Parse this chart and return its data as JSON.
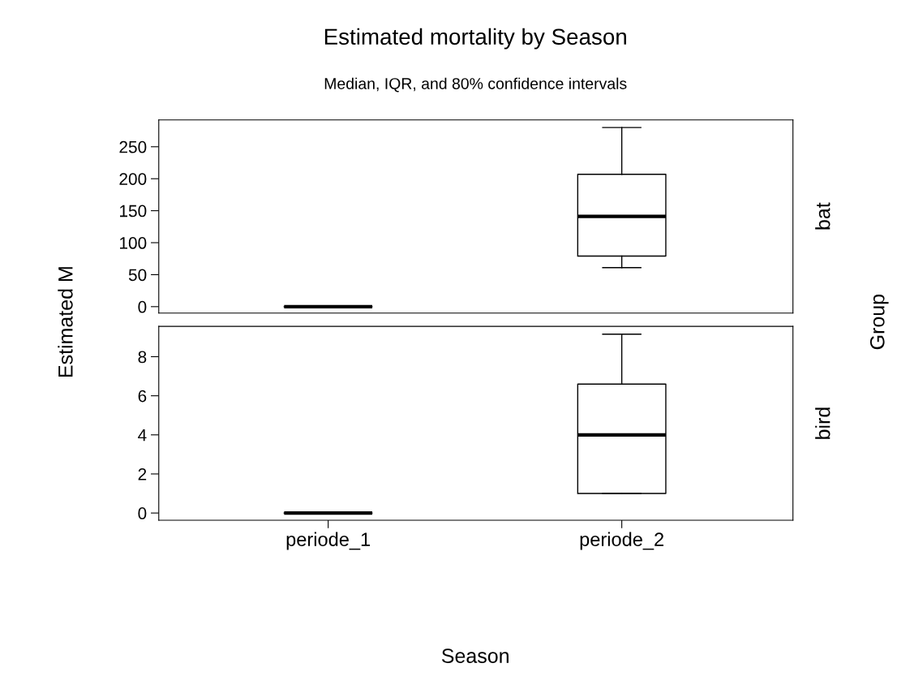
{
  "chart_data": [
    {
      "type": "box",
      "title": "Estimated mortality by Season",
      "subtitle": "Median, IQR, and 80% confidence intervals",
      "ylabel": "Estimated M",
      "boxes": [
        {
          "low": 0,
          "q1": 0,
          "median": 0,
          "q3": 0,
          "high": 0
        },
        {
          "low": 61,
          "q1": 79,
          "median": 141,
          "q3": 207,
          "high": 280
        }
      ],
      "ylim": [
        -10,
        292
      ],
      "yticks": [
        0,
        50,
        100,
        150,
        200,
        250
      ],
      "tick_labels": "y",
      "annotations": [
        "bat",
        "Group"
      ]
    },
    {
      "type": "box",
      "xlabel": "Season",
      "categories": [
        "periode_1",
        "periode_2"
      ],
      "boxes": [
        {
          "low": 0,
          "q1": 0,
          "median": 0,
          "q3": 0,
          "high": 0
        },
        {
          "low": 1.0,
          "q1": 1.0,
          "median": 4.0,
          "q3": 6.6,
          "high": 9.15
        }
      ],
      "ylim": [
        -0.37,
        9.55
      ],
      "yticks": [
        0,
        2,
        4,
        6,
        8
      ],
      "annotations": [
        "bird"
      ]
    }
  ]
}
